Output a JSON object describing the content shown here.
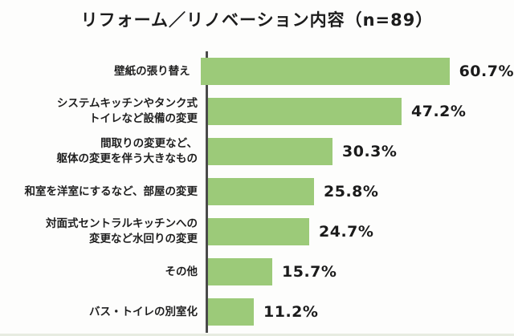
{
  "title": "リフォーム／リノベーション内容（n=89）",
  "colors": {
    "bar": "#9cca79",
    "axis": "#4a4a4a",
    "text": "#1f1f1f",
    "background": "#fdfdfc"
  },
  "chart_data": {
    "type": "bar",
    "orientation": "horizontal",
    "title": "リフォーム／リノベーション内容（n=89）",
    "sample_size_label": "n=89",
    "categories": [
      "壁紙の張り替え",
      "システムキッチンやタンク式\nトイレなど設備の変更",
      "間取りの変更など、\n躯体の変更を伴う大きなもの",
      "和室を洋室にするなど、部屋の変更",
      "対面式セントラルキッチンへの\n変更など水回りの変更",
      "その他",
      "バス・トイレの別室化"
    ],
    "values": [
      60.7,
      47.2,
      30.3,
      25.8,
      24.7,
      15.7,
      11.2
    ],
    "value_labels": [
      "60.7%",
      "47.2%",
      "30.3%",
      "25.8%",
      "24.7%",
      "15.7%",
      "11.2%"
    ],
    "unit": "%",
    "xlim": [
      0,
      75
    ],
    "grid": false,
    "legend": "none",
    "value_label_position": "right-of-bar"
  }
}
